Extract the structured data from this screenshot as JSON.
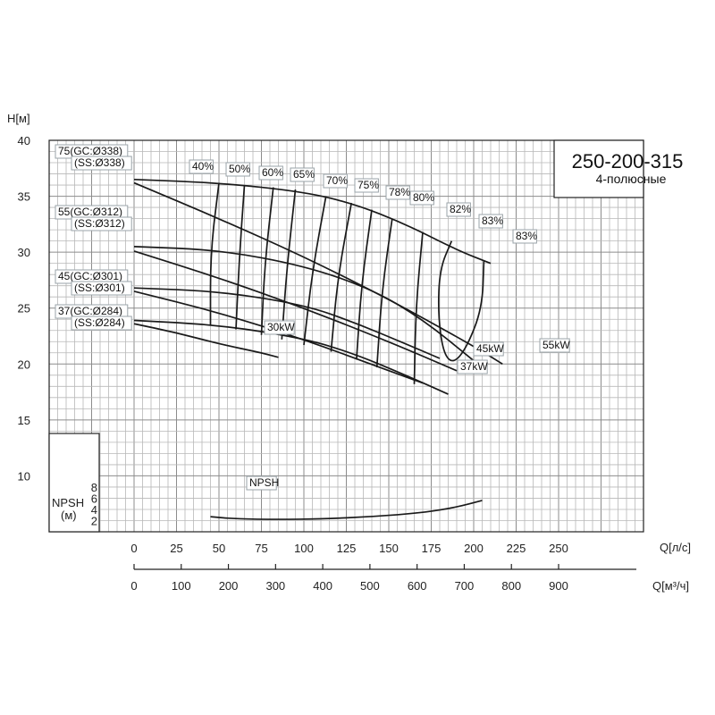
{
  "chart_data": {
    "type": "line",
    "title": "250-200-315",
    "subtitle": "4-полюсные",
    "ylabel": "H[м]",
    "xlabel": "Q[л/с]",
    "xlabel2": "Q[м³/ч]",
    "npsh_label": [
      "NPSH",
      "(м)"
    ],
    "xlim": [
      -50,
      300
    ],
    "ylim": [
      5,
      40
    ],
    "x_ticks": [
      0,
      25,
      50,
      75,
      100,
      125,
      150,
      175,
      200,
      225,
      250
    ],
    "y_ticks": [
      10,
      15,
      20,
      25,
      30,
      35,
      40
    ],
    "x2_ticks": [
      0,
      100,
      200,
      300,
      400,
      500,
      600,
      700,
      800,
      900
    ],
    "npsh_ticks": [
      2,
      4,
      6,
      8
    ],
    "impellers": [
      {
        "name": "75(GC:Ø338)",
        "name2": "(SS:Ø338)",
        "q": [
          0,
          50,
          100,
          130,
          160,
          190,
          210
        ],
        "h": [
          36.5,
          36.2,
          35.4,
          34.3,
          32.5,
          30.2,
          29.0
        ]
      },
      {
        "name": "55(GC:Ø312)",
        "name2": "(SS:Ø312)",
        "q": [
          0,
          50,
          100,
          140,
          170,
          200
        ],
        "h": [
          30.5,
          30.2,
          28.8,
          26.7,
          24.0,
          20.3
        ]
      },
      {
        "name": "45(GC:Ø301)",
        "name2": "(SS:Ø301)",
        "q": [
          0,
          50,
          100,
          130,
          160,
          180
        ],
        "h": [
          26.8,
          26.5,
          25.3,
          23.7,
          21.8,
          20.5
        ]
      },
      {
        "name": "37(GC:Ø284)",
        "name2": "(SS:Ø284)",
        "q": [
          0,
          50,
          100,
          130,
          160,
          185
        ],
        "h": [
          23.9,
          23.5,
          22.3,
          20.9,
          19.0,
          17.3
        ]
      }
    ],
    "power_lines": [
      {
        "label": "55kW",
        "q": [
          0,
          50,
          100,
          150,
          200,
          217
        ],
        "h": [
          36.2,
          33.0,
          29.6,
          25.8,
          21.6,
          20.0
        ]
      },
      {
        "label": "45kW",
        "q": [
          0,
          50,
          100,
          150,
          190
        ],
        "h": [
          30.1,
          27.7,
          25.0,
          22.0,
          19.4
        ]
      },
      {
        "label": "37kW",
        "q": [
          0,
          50,
          100,
          150,
          170
        ],
        "h": [
          26.5,
          24.6,
          22.2,
          19.4,
          18.3
        ]
      },
      {
        "label": "30kW",
        "q": [
          0,
          25,
          50,
          75,
          85
        ],
        "h": [
          23.6,
          22.8,
          21.8,
          21.0,
          20.6
        ]
      }
    ],
    "efficiency_labels": [
      "40%",
      "50%",
      "60%",
      "65%",
      "70%",
      "75%",
      "78%",
      "80%",
      "82%",
      "83%",
      "83%"
    ],
    "efficiency_lines": [
      {
        "q": [
          50,
          45,
          45
        ],
        "h": [
          36.2,
          30.0,
          23.5
        ]
      },
      {
        "q": [
          65,
          62,
          60
        ],
        "h": [
          36.0,
          29.5,
          23.1
        ]
      },
      {
        "q": [
          82,
          77,
          75
        ],
        "h": [
          35.8,
          29.0,
          22.6
        ]
      },
      {
        "q": [
          95,
          90,
          87
        ],
        "h": [
          35.6,
          28.6,
          22.2
        ]
      },
      {
        "q": [
          113,
          105,
          100
        ],
        "h": [
          35.0,
          28.3,
          21.7
        ]
      },
      {
        "q": [
          128,
          120,
          116
        ],
        "h": [
          34.4,
          27.8,
          21.1
        ]
      },
      {
        "q": [
          140,
          134,
          131
        ],
        "h": [
          33.8,
          27.2,
          20.4
        ]
      },
      {
        "q": [
          152,
          146,
          143
        ],
        "h": [
          33.0,
          26.6,
          19.7
        ]
      },
      {
        "q": [
          170,
          166,
          165
        ],
        "h": [
          31.8,
          25.2,
          18.2
        ]
      }
    ],
    "efficiency_loop": {
      "q": [
        187,
        180,
        179,
        182,
        188,
        196,
        205,
        206
      ],
      "h": [
        31.0,
        28.5,
        24.5,
        21.0,
        20.0,
        21.5,
        25.0,
        29.2
      ]
    },
    "npsh": {
      "q": [
        45,
        60,
        85,
        110,
        140,
        170,
        190,
        205
      ],
      "v": [
        2.7,
        2.3,
        2.2,
        2.3,
        2.7,
        3.4,
        4.4,
        5.6
      ]
    }
  }
}
